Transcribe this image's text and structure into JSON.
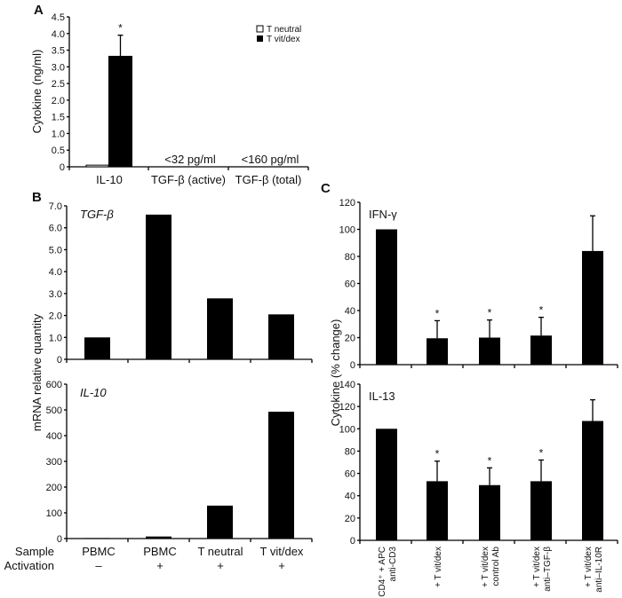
{
  "chart_data": [
    {
      "panel": "A",
      "type": "bar",
      "ylabel": "Cytokine (ng/ml)",
      "ylim": [
        0,
        4.5
      ],
      "yticks": [
        "0",
        "0.5",
        "1.0",
        "1.5",
        "2.0",
        "2.5",
        "3.0",
        "3.5",
        "4.0",
        "4.5"
      ],
      "categories": [
        "IL-10",
        "TGF-β (active)",
        "TGF-β (total)"
      ],
      "series": [
        {
          "name": "T neutral",
          "color": "#ffffff",
          "values": [
            0.05,
            null,
            null
          ]
        },
        {
          "name": "T vit/dex",
          "color": "#000000",
          "values": [
            3.33,
            null,
            null
          ],
          "error_upper": [
            3.95,
            null,
            null
          ],
          "significance": [
            "*",
            "",
            ""
          ]
        }
      ],
      "annotations": [
        "",
        "<32 pg/ml",
        "<160 pg/ml"
      ],
      "legend": "top-right"
    },
    {
      "panel": "B",
      "type": "bar",
      "title": "TGF-β",
      "ylim": [
        0,
        7
      ],
      "yticks": [
        "0",
        "1.0",
        "2.0",
        "3.0",
        "4.0",
        "5.0",
        "6.0",
        "7.0"
      ],
      "values": [
        1.0,
        6.6,
        2.78,
        2.05
      ]
    },
    {
      "panel": "",
      "type": "bar",
      "title": "IL-10",
      "ylim": [
        0,
        600
      ],
      "yticks": [
        "0",
        "100",
        "200",
        "300",
        "400",
        "500",
        "600"
      ],
      "values": [
        2,
        8,
        128,
        493
      ]
    },
    {
      "panel": "C",
      "type": "bar",
      "title": "IFN-γ",
      "ylim": [
        0,
        120
      ],
      "yticks": [
        "0",
        "20",
        "40",
        "60",
        "80",
        "100",
        "120"
      ],
      "values": [
        100,
        19.5,
        20,
        21.5,
        84
      ],
      "error_upper": [
        100,
        32.5,
        33,
        35,
        110
      ],
      "significance": [
        "",
        "*",
        "*",
        "*",
        ""
      ]
    },
    {
      "panel": "",
      "type": "bar",
      "title": "IL-13",
      "ylim": [
        0,
        140
      ],
      "yticks": [
        "0",
        "20",
        "40",
        "60",
        "80",
        "100",
        "120",
        "140"
      ],
      "values": [
        100,
        53,
        49.5,
        53,
        107
      ],
      "error_upper": [
        100,
        71,
        65,
        72,
        126
      ],
      "significance": [
        "",
        "*",
        "*",
        "*",
        ""
      ]
    }
  ],
  "panel_b": {
    "ylabel": "mRNA relative quantity",
    "sample_label": "Sample",
    "activation_label": "Activation",
    "samples": [
      "PBMC",
      "PBMC",
      "T neutral",
      "T vit/dex"
    ],
    "activation": [
      "–",
      "+",
      "+",
      "+"
    ]
  },
  "panel_c": {
    "ylabel": "Cytokine (% change)",
    "categories": [
      [
        "CD4⁺ + APC",
        "anti-CD3"
      ],
      [
        "+ T vit/dex"
      ],
      [
        "+ T vit/dex",
        "control Ab"
      ],
      [
        "+ T vit/dex",
        "anti–TGF-β"
      ],
      [
        "+ T vit/dex",
        "anti–IL-10R"
      ]
    ]
  }
}
